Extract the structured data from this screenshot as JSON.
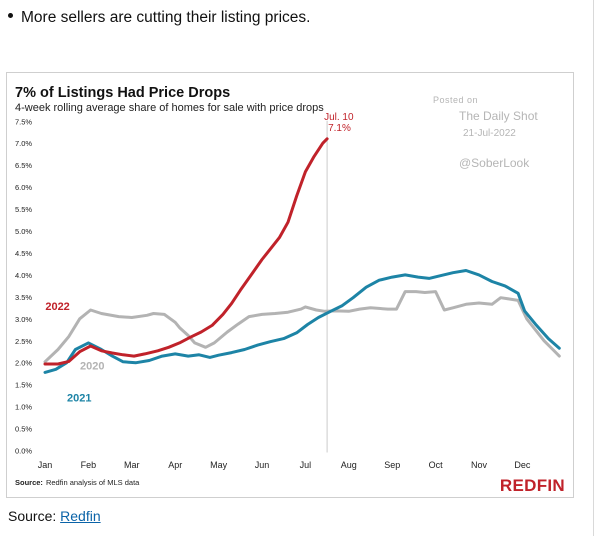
{
  "headline": "More sellers are cutting their listing prices.",
  "source_line": {
    "label": "Source:",
    "link_text": "Redfin"
  },
  "chart_data": {
    "type": "line",
    "title": "7% of Listings Had Price Drops",
    "subtitle": "4-week rolling average share of homes for sale with price drops",
    "xlabel": "",
    "ylabel": "",
    "x_ticks": [
      "Jan",
      "Feb",
      "Mar",
      "Apr",
      "May",
      "Jun",
      "Jul",
      "Aug",
      "Sep",
      "Oct",
      "Nov",
      "Dec"
    ],
    "x_range": [
      0,
      11.5
    ],
    "ylim": [
      0,
      7.5
    ],
    "y_ticks": [
      {
        "v": 0.0,
        "label": "0.0%"
      },
      {
        "v": 0.5,
        "label": "0.5%"
      },
      {
        "v": 1.0,
        "label": "1.0%"
      },
      {
        "v": 1.5,
        "label": "1.5%"
      },
      {
        "v": 2.0,
        "label": "2.0%"
      },
      {
        "v": 2.5,
        "label": "2.5%"
      },
      {
        "v": 3.0,
        "label": "3.0%"
      },
      {
        "v": 3.5,
        "label": "3.5%"
      },
      {
        "v": 4.0,
        "label": "4.0%"
      },
      {
        "v": 4.5,
        "label": "4.5%"
      },
      {
        "v": 5.0,
        "label": "5.0%"
      },
      {
        "v": 5.5,
        "label": "5.5%"
      },
      {
        "v": 6.0,
        "label": "6.0%"
      },
      {
        "v": 6.5,
        "label": "6.5%"
      },
      {
        "v": 7.0,
        "label": "7.0%"
      },
      {
        "v": 7.5,
        "label": "7.5%"
      }
    ],
    "grid": false,
    "series": [
      {
        "name": "2020",
        "color": "#b3b3b3",
        "points": [
          [
            0,
            2.02
          ],
          [
            0.3,
            2.3
          ],
          [
            0.55,
            2.6
          ],
          [
            0.8,
            3.0
          ],
          [
            1.05,
            3.2
          ],
          [
            1.3,
            3.12
          ],
          [
            1.7,
            3.05
          ],
          [
            2.0,
            3.03
          ],
          [
            2.35,
            3.08
          ],
          [
            2.5,
            3.12
          ],
          [
            2.75,
            3.1
          ],
          [
            3.0,
            2.92
          ],
          [
            3.1,
            2.8
          ],
          [
            3.3,
            2.62
          ],
          [
            3.45,
            2.45
          ],
          [
            3.7,
            2.35
          ],
          [
            3.9,
            2.45
          ],
          [
            4.2,
            2.7
          ],
          [
            4.45,
            2.88
          ],
          [
            4.7,
            3.05
          ],
          [
            5.0,
            3.1
          ],
          [
            5.3,
            3.12
          ],
          [
            5.6,
            3.15
          ],
          [
            5.9,
            3.22
          ],
          [
            6.0,
            3.27
          ],
          [
            6.25,
            3.2
          ],
          [
            6.45,
            3.17
          ],
          [
            6.7,
            3.18
          ],
          [
            7.0,
            3.17
          ],
          [
            7.25,
            3.22
          ],
          [
            7.5,
            3.25
          ],
          [
            7.9,
            3.22
          ],
          [
            8.1,
            3.22
          ],
          [
            8.3,
            3.62
          ],
          [
            8.55,
            3.62
          ],
          [
            8.75,
            3.6
          ],
          [
            9.0,
            3.62
          ],
          [
            9.2,
            3.2
          ],
          [
            9.4,
            3.25
          ],
          [
            9.7,
            3.33
          ],
          [
            10.0,
            3.36
          ],
          [
            10.3,
            3.33
          ],
          [
            10.5,
            3.48
          ],
          [
            10.7,
            3.45
          ],
          [
            10.9,
            3.42
          ],
          [
            11.1,
            3.0
          ],
          [
            11.3,
            2.75
          ],
          [
            11.5,
            2.5
          ],
          [
            11.7,
            2.3
          ],
          [
            11.85,
            2.15
          ]
        ]
      },
      {
        "name": "2021",
        "color": "#1d84a6",
        "points": [
          [
            0,
            1.78
          ],
          [
            0.25,
            1.85
          ],
          [
            0.5,
            2.0
          ],
          [
            0.7,
            2.3
          ],
          [
            1.0,
            2.45
          ],
          [
            1.3,
            2.3
          ],
          [
            1.55,
            2.15
          ],
          [
            1.8,
            2.02
          ],
          [
            2.1,
            2.0
          ],
          [
            2.4,
            2.05
          ],
          [
            2.7,
            2.15
          ],
          [
            3.0,
            2.2
          ],
          [
            3.3,
            2.15
          ],
          [
            3.55,
            2.18
          ],
          [
            3.8,
            2.12
          ],
          [
            4.0,
            2.17
          ],
          [
            4.3,
            2.23
          ],
          [
            4.6,
            2.3
          ],
          [
            4.9,
            2.4
          ],
          [
            5.2,
            2.48
          ],
          [
            5.5,
            2.55
          ],
          [
            5.8,
            2.68
          ],
          [
            6.05,
            2.87
          ],
          [
            6.3,
            3.03
          ],
          [
            6.6,
            3.18
          ],
          [
            6.85,
            3.3
          ],
          [
            7.1,
            3.48
          ],
          [
            7.4,
            3.72
          ],
          [
            7.7,
            3.88
          ],
          [
            8.0,
            3.95
          ],
          [
            8.3,
            4.0
          ],
          [
            8.6,
            3.95
          ],
          [
            8.85,
            3.92
          ],
          [
            9.1,
            3.98
          ],
          [
            9.4,
            4.05
          ],
          [
            9.7,
            4.1
          ],
          [
            10.0,
            4.0
          ],
          [
            10.3,
            3.85
          ],
          [
            10.6,
            3.75
          ],
          [
            10.9,
            3.58
          ],
          [
            11.05,
            3.18
          ],
          [
            11.3,
            2.88
          ],
          [
            11.6,
            2.55
          ],
          [
            11.85,
            2.33
          ]
        ]
      },
      {
        "name": "2022",
        "color": "#c0222a",
        "points": [
          [
            0,
            1.97
          ],
          [
            0.3,
            1.97
          ],
          [
            0.55,
            2.03
          ],
          [
            0.8,
            2.25
          ],
          [
            1.05,
            2.38
          ],
          [
            1.3,
            2.27
          ],
          [
            1.55,
            2.22
          ],
          [
            1.8,
            2.18
          ],
          [
            2.05,
            2.15
          ],
          [
            2.3,
            2.2
          ],
          [
            2.6,
            2.27
          ],
          [
            2.85,
            2.35
          ],
          [
            3.1,
            2.45
          ],
          [
            3.35,
            2.58
          ],
          [
            3.6,
            2.7
          ],
          [
            3.85,
            2.85
          ],
          [
            4.1,
            3.1
          ],
          [
            4.3,
            3.35
          ],
          [
            4.5,
            3.65
          ],
          [
            4.75,
            4.0
          ],
          [
            5.0,
            4.35
          ],
          [
            5.2,
            4.6
          ],
          [
            5.4,
            4.85
          ],
          [
            5.6,
            5.2
          ],
          [
            5.8,
            5.8
          ],
          [
            6.0,
            6.35
          ],
          [
            6.2,
            6.7
          ],
          [
            6.4,
            7.0
          ],
          [
            6.5,
            7.1
          ]
        ]
      }
    ],
    "annotations": [
      {
        "text": "Jul. 10",
        "sub": "7.1%",
        "x": 6.5,
        "y": 7.1
      }
    ],
    "series_labels": [
      {
        "text": "2022",
        "series": "2022"
      },
      {
        "text": "2020",
        "series": "2020"
      },
      {
        "text": "2021",
        "series": "2021"
      }
    ],
    "watermark": {
      "line1": "Posted on",
      "line2": "The Daily Shot",
      "line3": "21-Jul-2022",
      "line4": "@SoberLook"
    },
    "source": {
      "bold": "Source:",
      "text": "Redfin analysis of MLS data"
    },
    "brand": "REDFIN",
    "brand_color": "#c0222a"
  }
}
